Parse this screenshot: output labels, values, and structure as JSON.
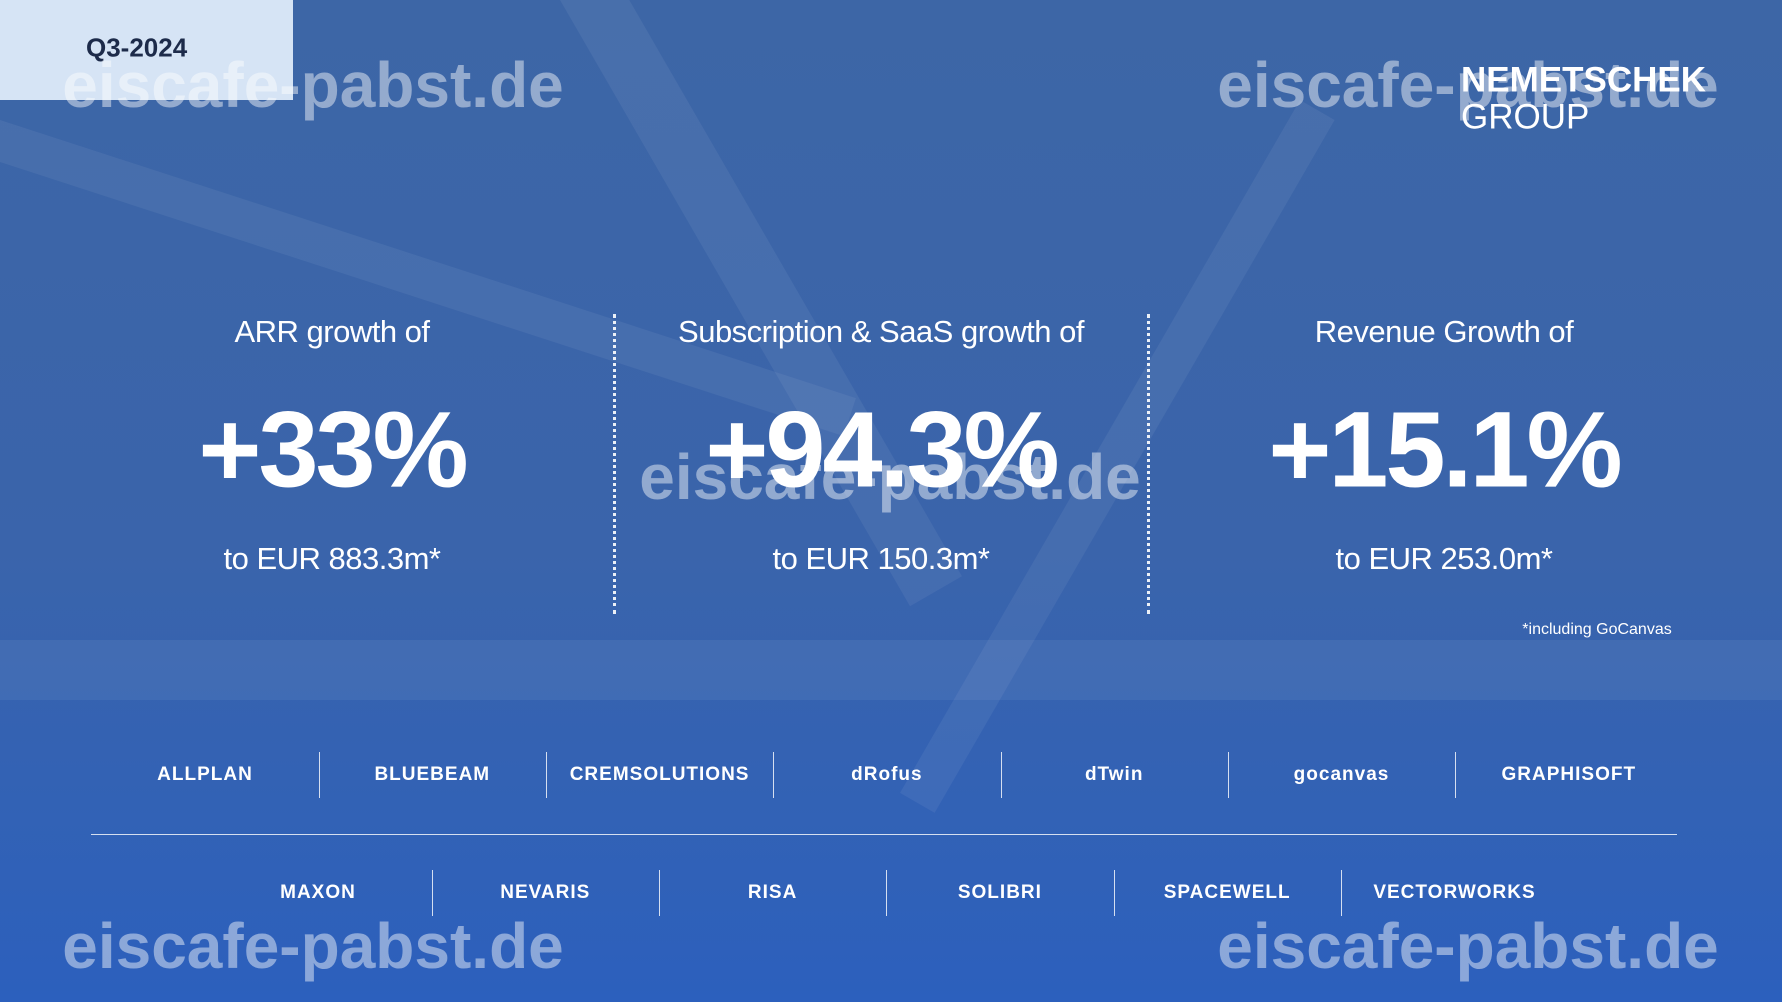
{
  "header": {
    "badge": "Q3-2024",
    "logo": [
      "NEMETSCHEK",
      "GROUP"
    ]
  },
  "metrics": [
    {
      "label": "ARR growth of",
      "value": "+33%",
      "detail": "to EUR 883.3m*"
    },
    {
      "label": "Subscription & SaaS growth of",
      "value": "+94.3%",
      "detail": "to EUR 150.3m*"
    },
    {
      "label": "Revenue Growth of",
      "value": "+15.1%",
      "detail": "to EUR 253.0m*"
    }
  ],
  "footnote": "*including GoCanvas",
  "brands": [
    [
      "ALLPLAN",
      "BLUEBEAM",
      "CREMSOLUTIONS",
      "dRofus",
      "dTwin",
      "gocanvas",
      "GRAPHISOFT"
    ],
    [
      "MAXON",
      "NEVARIS",
      "RISA",
      "SOLIBRI",
      "SPACEWELL",
      "VECTORWORKS"
    ]
  ],
  "watermarks": [
    "eiscafe-pabst.de",
    "eiscafe-pabst.de",
    "eiscafe-pabst.de",
    "eiscafe-pabst.de",
    "eiscafe-pabst.de"
  ]
}
